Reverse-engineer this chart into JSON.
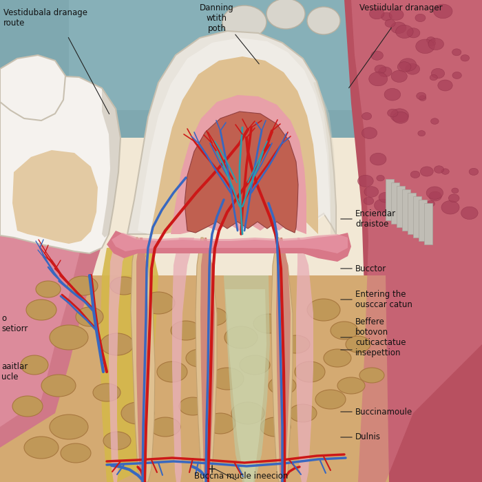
{
  "labels": {
    "top_left": "Vestidubala dranage\nroute",
    "top_center": "Danning\nwtith\npoth",
    "top_right": "Vestiidular dranager",
    "mid_right_1": "Enciendar\ndraistoe",
    "mid_right_2": "Bucctor",
    "mid_right_3": "Entering the\nousccar catun",
    "mid_right_4": "Beffere\nbotovon\ncuticactatue\ninsepettion",
    "bot_left_1": "o\nsetiorr",
    "bot_left_2": "aaitlar\nucle",
    "bot_center": "Buccna mucle ineecion",
    "bot_right_1": "Buccinamoule",
    "bot_right_2": "Dulnis"
  },
  "colors": {
    "bg_cream": "#f2e8d5",
    "bg_sky": "#7fa8b0",
    "tooth_white": "#e8e4dc",
    "tooth_highlight": "#f5f2ee",
    "tooth_shadow": "#c8c0b0",
    "dentin": "#dfc090",
    "dentin_dark": "#c8a870",
    "pulp_red": "#c06050",
    "pulp_dark": "#a04838",
    "root_pink": "#e0a8a0",
    "root_canal_pink": "#d08878",
    "perio_pink": "#e8b0b8",
    "gum_pink": "#d87888",
    "gum_light": "#e898a8",
    "gum_dark": "#c06070",
    "bone_tan": "#d4aa72",
    "bone_light": "#e0c080",
    "bone_hole": "#b89050",
    "bone_hole2": "#c8a060",
    "red_vessel": "#cc1818",
    "blue_vessel": "#3868c0",
    "cyan_vessel": "#28a0b0",
    "cheek_red": "#b85060",
    "cheek_light": "#d07080",
    "cheek_dark": "#983050",
    "adj_tooth": "#ddd8cf",
    "adj_tooth2": "#c8c3b8",
    "yellow_bone": "#d4b84a"
  }
}
